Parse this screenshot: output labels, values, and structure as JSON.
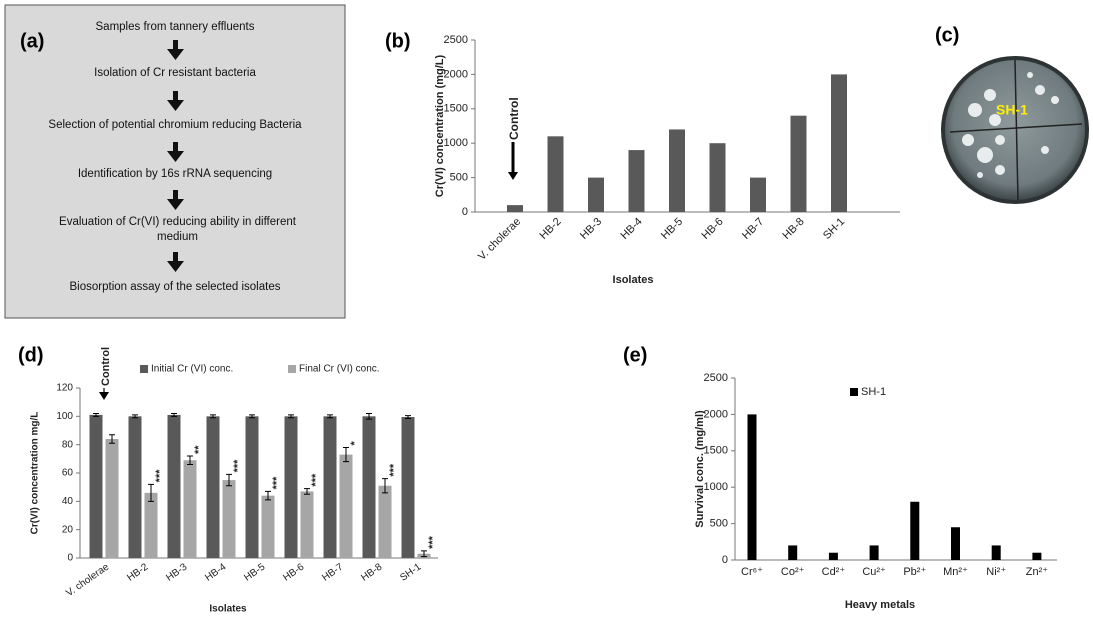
{
  "panels": [
    "(a)",
    "(b)",
    "(c)",
    "(d)",
    "(e)"
  ],
  "flowchart": {
    "steps": [
      "Samples from tannery effluents",
      "Isolation of Cr resistant bacteria",
      "Selection of potential chromium reducing Bacteria",
      "Identification by 16s rRNA sequencing",
      "Evaluation of Cr(VI) reducing ability in  different medium",
      "Biosorption assay of the selected isolates"
    ]
  },
  "plate_label": "SH-1",
  "chart_data": [
    {
      "type": "bar",
      "xlabel": "Isolates",
      "ylabel": "Cr(VI) concentration (mg/L)",
      "annotation": "Control",
      "categories": [
        "V. cholerae",
        "HB-2",
        "HB-3",
        "HB-4",
        "HB-5",
        "HB-6",
        "HB-7",
        "HB-8",
        "SH-1"
      ],
      "values": [
        100,
        1100,
        500,
        900,
        1200,
        1000,
        500,
        1400,
        2000
      ],
      "color": "#595959",
      "ylim": [
        0,
        2500
      ],
      "yticks": [
        0,
        500,
        1000,
        1500,
        2000,
        2500
      ]
    },
    {
      "type": "bar",
      "xlabel": "Isolates",
      "ylabel": "Cr(VI) concentration mg/L",
      "annotation": "Control",
      "categories": [
        "V. cholerae",
        "HB-2",
        "HB-3",
        "HB-4",
        "HB-5",
        "HB-6",
        "HB-7",
        "HB-8",
        "SH-1"
      ],
      "series": [
        {
          "name": "Initial Cr (VI) conc.",
          "color": "#595959",
          "values": [
            101,
            100,
            101,
            100,
            100,
            100,
            100,
            100,
            99.5
          ],
          "errors": [
            1,
            1,
            1,
            1,
            1,
            1,
            1,
            2,
            1
          ]
        },
        {
          "name": "Final Cr (VI) conc.",
          "color": "#a6a6a6",
          "values": [
            84,
            46,
            69,
            55,
            44,
            47,
            73,
            51,
            3
          ],
          "errors": [
            3,
            6,
            3,
            4,
            3,
            2,
            5,
            5,
            2
          ],
          "labels": [
            null,
            "***",
            "**",
            "***",
            "***",
            "***",
            "*",
            "***",
            "***"
          ]
        }
      ],
      "ylim": [
        0,
        120
      ],
      "yticks": [
        0,
        20,
        40,
        60,
        80,
        100,
        120
      ]
    },
    {
      "type": "bar",
      "xlabel": "Heavy metals",
      "ylabel": "Survival conc. (mg/ml)",
      "categories": [
        "Cr⁶⁺",
        "Co²⁺",
        "Cd²⁺",
        "Cu²⁺",
        "Pb²⁺",
        "Mn²⁺",
        "Ni²⁺",
        "Zn²⁺"
      ],
      "series": [
        {
          "name": "SH-1",
          "color": "#000000",
          "values": [
            2000,
            200,
            100,
            200,
            800,
            450,
            200,
            100
          ]
        }
      ],
      "ylim": [
        0,
        2500
      ],
      "yticks": [
        0,
        500,
        1000,
        1500,
        2000,
        2500
      ]
    }
  ]
}
